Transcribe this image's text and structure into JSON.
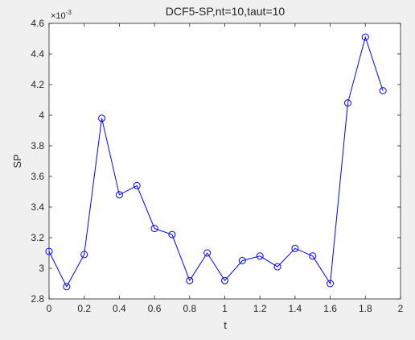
{
  "chart_data": {
    "type": "line",
    "title": "DCF5-SP,nt=10,taut=10",
    "xlabel": "t",
    "ylabel": "SP",
    "y_exponent_label": "×10",
    "y_exponent_power": "-3",
    "xlim": [
      0,
      2
    ],
    "ylim": [
      2.8,
      4.6
    ],
    "x_ticks": [
      0,
      0.2,
      0.4,
      0.6,
      0.8,
      1,
      1.2,
      1.4,
      1.6,
      1.8,
      2
    ],
    "x_tick_labels": [
      "0",
      "0.2",
      "0.4",
      "0.6",
      "0.8",
      "1",
      "1.2",
      "1.4",
      "1.6",
      "1.8",
      "2"
    ],
    "y_ticks": [
      2.8,
      3.0,
      3.2,
      3.4,
      3.6,
      3.8,
      4.0,
      4.2,
      4.4,
      4.6
    ],
    "y_tick_labels": [
      "2.8",
      "3",
      "3.2",
      "3.4",
      "3.6",
      "3.8",
      "4",
      "4.2",
      "4.4",
      "4.6"
    ],
    "grid": false,
    "marker": "circle",
    "series": [
      {
        "color": "#0000ff",
        "x": [
          0,
          0.1,
          0.2,
          0.3,
          0.4,
          0.5,
          0.6,
          0.7,
          0.8,
          0.9,
          1.0,
          1.1,
          1.2,
          1.3,
          1.4,
          1.5,
          1.6,
          1.7,
          1.8,
          1.9
        ],
        "y": [
          3.11,
          2.88,
          3.09,
          3.98,
          3.48,
          3.54,
          3.26,
          3.22,
          2.92,
          3.1,
          2.92,
          3.05,
          3.08,
          3.01,
          3.13,
          3.08,
          2.9,
          4.08,
          4.51,
          4.16
        ]
      }
    ]
  }
}
